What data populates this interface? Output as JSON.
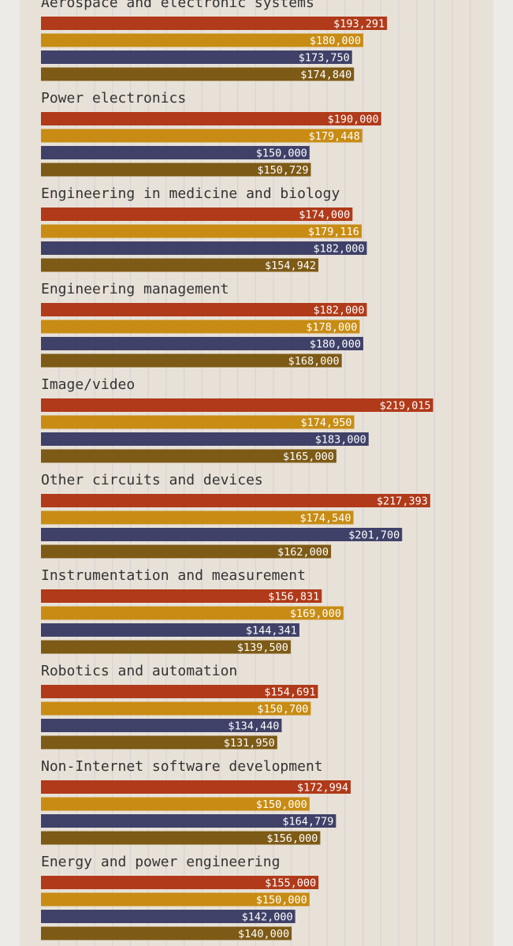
{
  "chart_data": {
    "type": "bar",
    "orientation": "horizontal",
    "grid": true,
    "colors": [
      "#b03a19",
      "#c88c14",
      "#3f4168",
      "#7d5a15"
    ],
    "xlim": [
      0,
      250000
    ],
    "categories": [
      {
        "label": "Aerospace and electronic systems",
        "values": [
          193291,
          180000,
          173750,
          174840
        ],
        "display": [
          "$193,291",
          "$180,000",
          "$173,750",
          "$174,840"
        ]
      },
      {
        "label": "Power electronics",
        "values": [
          190000,
          179448,
          150000,
          150729
        ],
        "display": [
          "$190,000",
          "$179,448",
          "$150,000",
          "$150,729"
        ]
      },
      {
        "label": "Engineering in medicine and biology",
        "values": [
          174000,
          179116,
          182000,
          154942
        ],
        "display": [
          "$174,000",
          "$179,116",
          "$182,000",
          "$154,942"
        ]
      },
      {
        "label": "Engineering management",
        "values": [
          182000,
          178000,
          180000,
          168000
        ],
        "display": [
          "$182,000",
          "$178,000",
          "$180,000",
          "$168,000"
        ]
      },
      {
        "label": "Image/video",
        "values": [
          219015,
          174950,
          183000,
          165000
        ],
        "display": [
          "$219,015",
          "$174,950",
          "$183,000",
          "$165,000"
        ]
      },
      {
        "label": "Other circuits and devices",
        "values": [
          217393,
          174540,
          201700,
          162000
        ],
        "display": [
          "$217,393",
          "$174,540",
          "$201,700",
          "$162,000"
        ]
      },
      {
        "label": "Instrumentation and measurement",
        "values": [
          156831,
          169000,
          144341,
          139500
        ],
        "display": [
          "$156,831",
          "$169,000",
          "$144,341",
          "$139,500"
        ]
      },
      {
        "label": "Robotics and automation",
        "values": [
          154691,
          150700,
          134440,
          131950
        ],
        "display": [
          "$154,691",
          "$150,700",
          "$134,440",
          "$131,950"
        ]
      },
      {
        "label": "Non-Internet software development",
        "values": [
          172994,
          150000,
          164779,
          156000
        ],
        "display": [
          "$172,994",
          "$150,000",
          "$164,779",
          "$156,000"
        ]
      },
      {
        "label": "Energy and power engineering",
        "values": [
          155000,
          150000,
          142000,
          140000
        ],
        "display": [
          "$155,000",
          "$150,000",
          "$142,000",
          "$140,000"
        ]
      }
    ]
  }
}
